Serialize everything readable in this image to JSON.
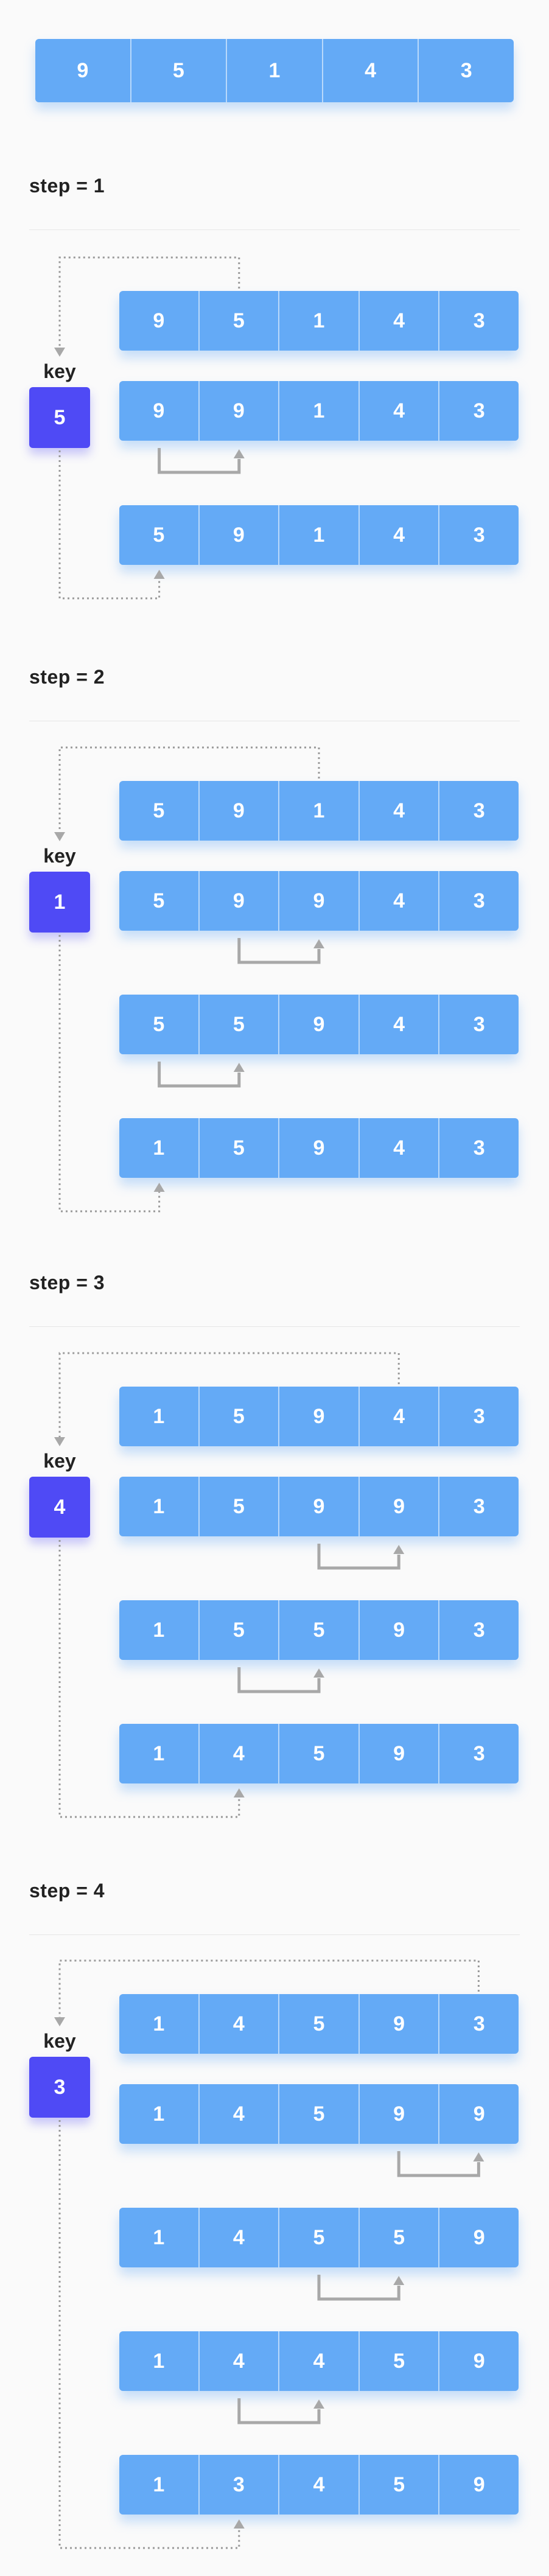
{
  "initial": [
    "9",
    "5",
    "1",
    "4",
    "3"
  ],
  "key_label": "key",
  "steps": [
    {
      "title": "step = 1",
      "key": "5",
      "rows": [
        [
          "9",
          "5",
          "1",
          "4",
          "3"
        ],
        [
          "9",
          "9",
          "1",
          "4",
          "3"
        ],
        [
          "5",
          "9",
          "1",
          "4",
          "3"
        ]
      ]
    },
    {
      "title": "step = 2",
      "key": "1",
      "rows": [
        [
          "5",
          "9",
          "1",
          "4",
          "3"
        ],
        [
          "5",
          "9",
          "9",
          "4",
          "3"
        ],
        [
          "5",
          "5",
          "9",
          "4",
          "3"
        ],
        [
          "1",
          "5",
          "9",
          "4",
          "3"
        ]
      ]
    },
    {
      "title": "step = 3",
      "key": "4",
      "rows": [
        [
          "1",
          "5",
          "9",
          "4",
          "3"
        ],
        [
          "1",
          "5",
          "9",
          "9",
          "3"
        ],
        [
          "1",
          "5",
          "5",
          "9",
          "3"
        ],
        [
          "1",
          "4",
          "5",
          "9",
          "3"
        ]
      ]
    },
    {
      "title": "step = 4",
      "key": "3",
      "rows": [
        [
          "1",
          "4",
          "5",
          "9",
          "3"
        ],
        [
          "1",
          "4",
          "5",
          "9",
          "9"
        ],
        [
          "1",
          "4",
          "5",
          "5",
          "9"
        ],
        [
          "1",
          "4",
          "4",
          "5",
          "9"
        ],
        [
          "1",
          "3",
          "4",
          "5",
          "9"
        ]
      ]
    }
  ]
}
